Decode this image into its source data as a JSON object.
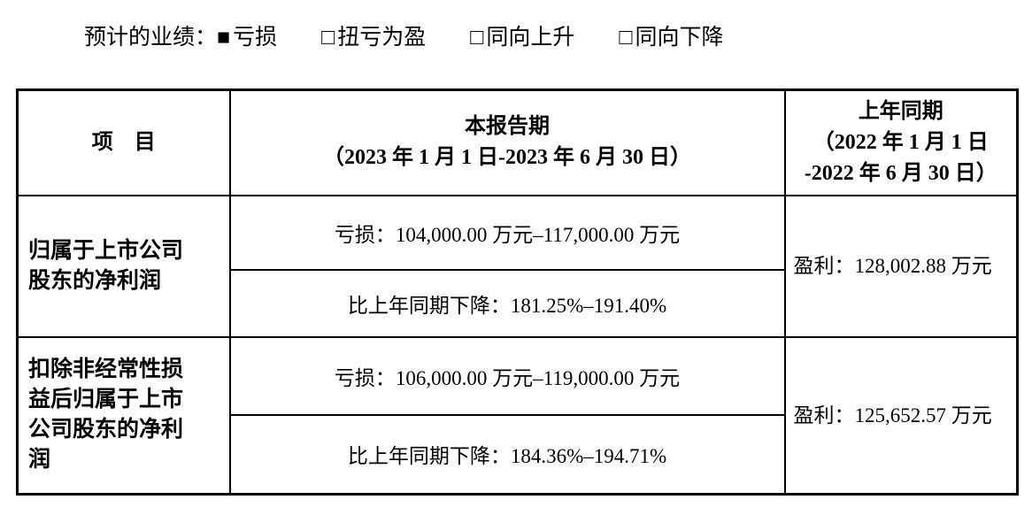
{
  "legend": {
    "label": "预计的业绩：",
    "options": [
      {
        "symbol": "■",
        "label": "亏损",
        "checked": true
      },
      {
        "symbol": "□",
        "label": "扭亏为盈",
        "checked": false
      },
      {
        "symbol": "□",
        "label": "同向上升",
        "checked": false
      },
      {
        "symbol": "□",
        "label": "同向下降",
        "checked": false
      }
    ]
  },
  "table": {
    "header": {
      "item": "项　目",
      "current": [
        "本报告期",
        "（2023 年 1 月 1 日-2023 年 6 月 30 日）"
      ],
      "prior": [
        "上年同期",
        "（2022 年 1 月 1 日",
        "-2022 年 6 月 30 日）"
      ]
    },
    "rows": [
      {
        "item": "归属于上市公司股东的净利润",
        "loss": "亏损：104,000.00 万元–117,000.00 万元",
        "decline": "比上年同期下降：181.25%–191.40%",
        "prior": "盈利：128,002.88 万元"
      },
      {
        "item": "扣除非经常性损益后归属于上市公司股东的净利润",
        "loss": "亏损：106,000.00 万元–119,000.00 万元",
        "decline": "比上年同期下降：184.36%–194.71%",
        "prior": "盈利：125,652.57 万元"
      }
    ]
  }
}
